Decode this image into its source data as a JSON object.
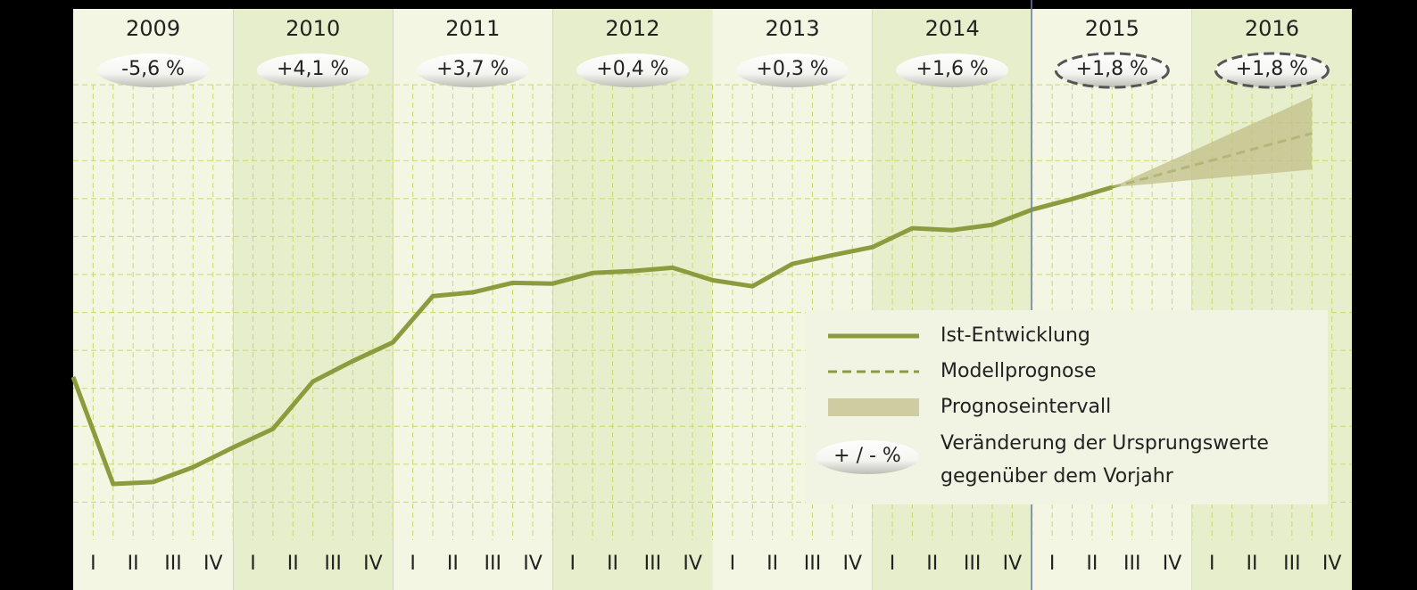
{
  "chart_data": {
    "type": "line",
    "years": [
      "2009",
      "2010",
      "2011",
      "2012",
      "2013",
      "2014",
      "2015",
      "2016"
    ],
    "year_changes": [
      {
        "label": "-5,6 %",
        "dashed": false
      },
      {
        "label": "+4,1 %",
        "dashed": false
      },
      {
        "label": "+3,7 %",
        "dashed": false
      },
      {
        "label": "+0,4 %",
        "dashed": false
      },
      {
        "label": "+0,3 %",
        "dashed": false
      },
      {
        "label": "+1,6 %",
        "dashed": false
      },
      {
        "label": "+1,8 %",
        "dashed": true
      },
      {
        "label": "+1,8 %",
        "dashed": true
      }
    ],
    "categories": [
      "I",
      "II",
      "III",
      "IV",
      "I",
      "II",
      "III",
      "IV",
      "I",
      "II",
      "III",
      "IV",
      "I",
      "II",
      "III",
      "IV",
      "I",
      "II",
      "III",
      "IV",
      "I",
      "II",
      "III",
      "IV",
      "I",
      "II",
      "III",
      "IV",
      "I",
      "II",
      "III",
      "IV"
    ],
    "series": [
      {
        "name": "Ist-Entwicklung",
        "color": "#8c9b3e",
        "style": "solid",
        "values": [
          4.3,
          1.48,
          1.53,
          1.92,
          2.44,
          2.93,
          4.18,
          4.72,
          5.21,
          6.43,
          6.53,
          6.78,
          6.76,
          7.04,
          7.09,
          7.18,
          6.85,
          6.69,
          7.28,
          7.51,
          7.72,
          8.22,
          8.17,
          8.31,
          8.71,
          8.99,
          9.3,
          null,
          null,
          null,
          null,
          null
        ]
      },
      {
        "name": "Modellprognose",
        "color": "#8c9b3e",
        "style": "dashed",
        "values": [
          null,
          null,
          null,
          null,
          null,
          null,
          null,
          null,
          null,
          null,
          null,
          null,
          null,
          null,
          null,
          null,
          null,
          null,
          null,
          null,
          null,
          null,
          null,
          null,
          null,
          null,
          9.3,
          9.58,
          9.87,
          10.15,
          10.44,
          10.72
        ]
      },
      {
        "name": "Prognoseintervall",
        "color": "#c2bf8a",
        "style": "band",
        "upper": [
          null,
          null,
          null,
          null,
          null,
          null,
          null,
          null,
          null,
          null,
          null,
          null,
          null,
          null,
          null,
          null,
          null,
          null,
          null,
          null,
          null,
          null,
          null,
          null,
          null,
          null,
          9.3,
          9.78,
          10.25,
          10.73,
          11.2,
          11.68
        ],
        "lower": [
          null,
          null,
          null,
          null,
          null,
          null,
          null,
          null,
          null,
          null,
          null,
          null,
          null,
          null,
          null,
          null,
          null,
          null,
          null,
          null,
          null,
          null,
          null,
          null,
          null,
          null,
          9.3,
          9.39,
          9.49,
          9.58,
          9.67,
          9.77
        ]
      }
    ],
    "legend_note": {
      "symbol": "+ / - %",
      "lines": [
        "Veränderung der Ursprungswerte",
        "gegenüber dem Vorjahr"
      ]
    },
    "ylim": [
      0,
      14
    ],
    "grid": true
  }
}
